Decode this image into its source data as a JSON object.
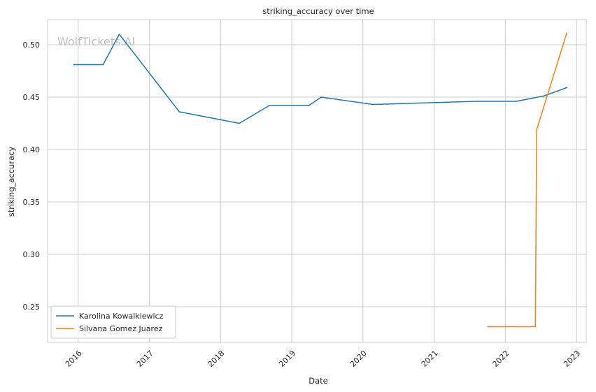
{
  "chart_data": {
    "type": "line",
    "title": "striking_accuracy over time",
    "xlabel": "Date",
    "ylabel": "striking_accuracy",
    "watermark": "WolfTickets.AI",
    "xlim": [
      "2015-07-28",
      "2023-02-20"
    ],
    "ylim": [
      0.216,
      0.524
    ],
    "x_ticks": [
      "2016-01-01",
      "2017-01-01",
      "2018-01-01",
      "2019-01-01",
      "2020-01-01",
      "2021-01-01",
      "2022-01-01",
      "2023-01-01"
    ],
    "x_tick_labels": [
      "2016",
      "2017",
      "2018",
      "2019",
      "2020",
      "2021",
      "2022",
      "2023"
    ],
    "y_ticks": [
      0.25,
      0.3,
      0.35,
      0.4,
      0.45,
      0.5
    ],
    "y_tick_labels": [
      "0.25",
      "0.30",
      "0.35",
      "0.40",
      "0.45",
      "0.50"
    ],
    "grid": true,
    "legend_position": "lower-left",
    "series": [
      {
        "name": "Karolina Kowalkiewicz",
        "color": "#1f77b4",
        "points": [
          {
            "x": "2015-12-10",
            "y": 0.481
          },
          {
            "x": "2016-05-08",
            "y": 0.481
          },
          {
            "x": "2016-07-30",
            "y": 0.51
          },
          {
            "x": "2017-06-03",
            "y": 0.436
          },
          {
            "x": "2018-04-07",
            "y": 0.425
          },
          {
            "x": "2018-09-08",
            "y": 0.442
          },
          {
            "x": "2019-03-30",
            "y": 0.442
          },
          {
            "x": "2019-06-01",
            "y": 0.45
          },
          {
            "x": "2020-02-22",
            "y": 0.443
          },
          {
            "x": "2021-08-07",
            "y": 0.446
          },
          {
            "x": "2022-02-26",
            "y": 0.446
          },
          {
            "x": "2022-07-16",
            "y": 0.451
          },
          {
            "x": "2022-11-12",
            "y": 0.459
          }
        ]
      },
      {
        "name": "Silvana Gomez Juarez",
        "color": "#ff7f0e",
        "points": [
          {
            "x": "2021-10-02",
            "y": 0.231
          },
          {
            "x": "2022-06-04",
            "y": 0.231
          },
          {
            "x": "2022-06-11",
            "y": 0.419
          },
          {
            "x": "2022-11-12",
            "y": 0.511
          }
        ]
      }
    ]
  }
}
